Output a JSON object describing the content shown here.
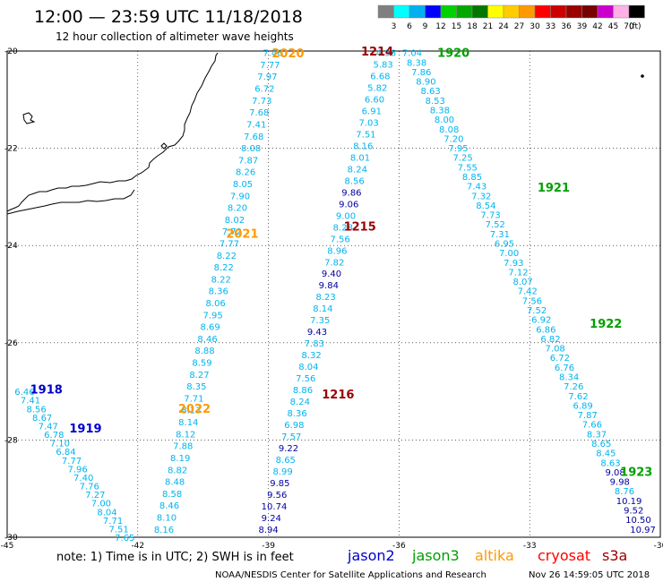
{
  "header": {
    "title": "12:00 — 23:59 UTC 11/18/2018",
    "subtitle": "12 hour collection of altimeter wave heights"
  },
  "legend": {
    "unit": "(ft)",
    "bins": [
      {
        "label": "3",
        "color": "#7f7f7f"
      },
      {
        "label": "6",
        "color": "#00ffff"
      },
      {
        "label": "9",
        "color": "#00b0f0"
      },
      {
        "label": "12",
        "color": "#0000ff"
      },
      {
        "label": "15",
        "color": "#00d200"
      },
      {
        "label": "18",
        "color": "#00a800"
      },
      {
        "label": "21",
        "color": "#007800"
      },
      {
        "label": "24",
        "color": "#ffff00"
      },
      {
        "label": "27",
        "color": "#ffcc00"
      },
      {
        "label": "30",
        "color": "#ff9900"
      },
      {
        "label": "33",
        "color": "#ff0000"
      },
      {
        "label": "36",
        "color": "#cc0000"
      },
      {
        "label": "39",
        "color": "#990000"
      },
      {
        "label": "42",
        "color": "#770000"
      },
      {
        "label": "45",
        "color": "#cc00cc"
      },
      {
        "label": "70",
        "color": "#ffb0e6"
      },
      {
        "label": "",
        "color": "#000000"
      }
    ]
  },
  "map": {
    "lon_range": [
      -45,
      -30
    ],
    "lat_range": [
      -30,
      -20
    ],
    "lon_ticks": [
      {
        "lon": -45,
        "label": "-45"
      },
      {
        "lon": -42,
        "label": "-42"
      },
      {
        "lon": -39,
        "label": "-39"
      },
      {
        "lon": -36,
        "label": "-36"
      },
      {
        "lon": -33,
        "label": "-33"
      },
      {
        "lon": -30,
        "label": "-30"
      }
    ],
    "lat_ticks": [
      {
        "lat": -20,
        "label": "-20"
      },
      {
        "lat": -22,
        "label": "-22"
      },
      {
        "lat": -24,
        "label": "-24"
      },
      {
        "lat": -26,
        "label": "-26"
      },
      {
        "lat": -28,
        "label": "-28"
      },
      {
        "lat": -30,
        "label": "-30"
      }
    ]
  },
  "colors": {
    "cyan_text": "#00b4ee",
    "dark_blue_text": "#0000a0",
    "jason2": "#0000cc",
    "jason3": "#00a000",
    "altika": "#ff9900",
    "cryosat": "#ff0000",
    "s3a": "#990000",
    "coast": "#000000",
    "grid": "#000000"
  },
  "tracks": [
    {
      "id": "left",
      "start": [
        -44.6,
        -27.0
      ],
      "end": [
        -42.3,
        -30.0
      ],
      "values": [
        "6.46",
        "7.41",
        "8.56",
        "8.67",
        "7.47",
        "6.78",
        "7.10",
        "6.84",
        "7.77",
        "7.96",
        "7.40",
        "7.76",
        "7.27",
        "7.00",
        "8.04",
        "7.71",
        "7.51",
        "7.65"
      ],
      "dark": []
    },
    {
      "id": "a2020",
      "start": [
        -38.9,
        -20.03
      ],
      "end": [
        -41.4,
        -29.83
      ],
      "values": [
        "7.46",
        "7.77",
        "7.97",
        "6.72",
        "7.73",
        "7.68",
        "7.41",
        "7.68",
        "8.08",
        "7.87",
        "8.26",
        "8.05",
        "7.90",
        "8.20",
        "8.02",
        "7.72",
        "7.77",
        "8.22",
        "8.22",
        "8.22",
        "8.36",
        "8.06",
        "7.95",
        "8.69",
        "8.46",
        "8.88",
        "8.59",
        "8.27",
        "8.35",
        "7.71",
        "8.13",
        "8.14",
        "8.12",
        "7.88",
        "8.19",
        "8.82",
        "8.48",
        "8.58",
        "8.46",
        "8.10",
        "8.16"
      ],
      "dark": []
    },
    {
      "id": "c1214",
      "start": [
        -36.3,
        -20.03
      ],
      "end": [
        -39.0,
        -29.83
      ],
      "values": [
        "4.96",
        "5.83",
        "6.68",
        "5.82",
        "6.60",
        "6.91",
        "7.03",
        "7.51",
        "8.16",
        "8.01",
        "8.24",
        "8.56",
        "9.86",
        "9.06",
        "9.00",
        "8.28",
        "7.56",
        "8.96",
        "7.82",
        "9.40",
        "9.84",
        "8.23",
        "8.14",
        "7.35",
        "9.43",
        "7.83",
        "8.32",
        "8.04",
        "7.56",
        "8.86",
        "8.24",
        "8.36",
        "6.98",
        "7.57",
        "9.22",
        "8.65",
        "8.99",
        "9.85",
        "9.56",
        "10.74",
        "9.24",
        "8.94"
      ],
      "dark": [
        "9.86",
        "9.06",
        "9.40",
        "9.84",
        "9.43",
        "9.22",
        "9.85",
        "9.56",
        "10.74",
        "9.24",
        "8.94"
      ]
    },
    {
      "id": "j1920",
      "start": [
        -35.7,
        -20.03
      ],
      "end": [
        -30.4,
        -29.83
      ],
      "values": [
        "7.04",
        "8.38",
        "7.86",
        "8.90",
        "8.63",
        "8.53",
        "8.38",
        "8.00",
        "8.08",
        "7.20",
        "7.95",
        "7.25",
        "7.55",
        "8.85",
        "7.43",
        "7.32",
        "8.54",
        "7.73",
        "7.52",
        "7.31",
        "6.95",
        "7.00",
        "7.93",
        "7.12",
        "8.07",
        "7.42",
        "7.56",
        "7.52",
        "6.92",
        "6.86",
        "6.82",
        "7.08",
        "6.72",
        "6.76",
        "8.34",
        "7.26",
        "7.62",
        "6.89",
        "7.87",
        "7.66",
        "8.37",
        "8.65",
        "8.45",
        "8.63",
        "9.08",
        "9.98",
        "8.76",
        "10.19",
        "9.52",
        "10.50",
        "10.97"
      ],
      "dark": [
        "9.08",
        "9.98",
        "10.19",
        "9.52",
        "10.50",
        "10.97"
      ]
    }
  ],
  "time_labels": [
    {
      "text": "2020",
      "lon": -38.55,
      "lat": -20.04,
      "mission": "altika"
    },
    {
      "text": "1214",
      "lon": -36.5,
      "lat": -20.0,
      "mission": "s3a"
    },
    {
      "text": "1920",
      "lon": -34.75,
      "lat": -20.03,
      "mission": "jason3"
    },
    {
      "text": "1921",
      "lon": -32.45,
      "lat": -22.8,
      "mission": "jason3"
    },
    {
      "text": "2021",
      "lon": -39.6,
      "lat": -23.75,
      "mission": "altika"
    },
    {
      "text": "1215",
      "lon": -36.9,
      "lat": -23.6,
      "mission": "s3a"
    },
    {
      "text": "1922",
      "lon": -31.25,
      "lat": -25.6,
      "mission": "jason3"
    },
    {
      "text": "1918",
      "lon": -44.1,
      "lat": -26.95,
      "mission": "jason2"
    },
    {
      "text": "1919",
      "lon": -43.2,
      "lat": -27.75,
      "mission": "jason2"
    },
    {
      "text": "2022",
      "lon": -40.7,
      "lat": -27.35,
      "mission": "altika"
    },
    {
      "text": "1216",
      "lon": -37.4,
      "lat": -27.05,
      "mission": "s3a"
    },
    {
      "text": "1923",
      "lon": -30.55,
      "lat": -28.65,
      "mission": "jason3"
    }
  ],
  "footer": {
    "note": "note: 1) Time is in UTC; 2) SWH is in feet",
    "missions": [
      {
        "text": "jason2",
        "key": "jason2"
      },
      {
        "text": "jason3",
        "key": "jason3"
      },
      {
        "text": "altika",
        "key": "altika"
      },
      {
        "text": "cryosat",
        "key": "cryosat"
      },
      {
        "text": "s3a",
        "key": "s3a"
      }
    ],
    "credit": "NOAA/NESDIS Center for Satellite Applications and Research",
    "timestamp": "Nov 26 14:59:05 UTC 2018"
  }
}
